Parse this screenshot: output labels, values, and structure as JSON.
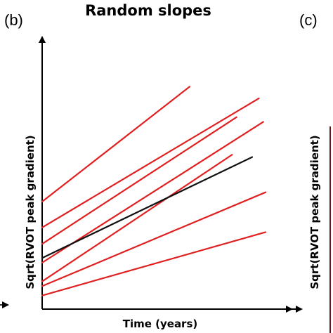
{
  "panels": {
    "left_label": "(b)",
    "right_label": "(c)",
    "right_ylabel": "Sqrt(RVOT peak gradient)"
  },
  "chart_data": {
    "type": "line",
    "title": "Random slopes",
    "xlabel": "Time (years)",
    "ylabel": "Sqrt(RVOT peak gradient)",
    "xlim": [
      0,
      1
    ],
    "ylim": [
      0,
      1
    ],
    "ticks": "none",
    "grid": false,
    "legend": "none",
    "colors": {
      "individual": "#e02020",
      "mean": "#111111",
      "axis": "#000000"
    },
    "series": [
      {
        "role": "individual",
        "x": [
          0,
          0.66
        ],
        "y": [
          0.44,
          0.93
        ]
      },
      {
        "role": "individual",
        "x": [
          0,
          0.99
        ],
        "y": [
          0.18,
          0.78
        ]
      },
      {
        "role": "individual",
        "x": [
          0,
          0.97
        ],
        "y": [
          0.33,
          0.88
        ]
      },
      {
        "role": "individual",
        "x": [
          0,
          0.87
        ],
        "y": [
          0.26,
          0.8
        ]
      },
      {
        "role": "individual",
        "x": [
          0,
          0.85
        ],
        "y": [
          0.1,
          0.64
        ]
      },
      {
        "role": "individual",
        "x": [
          0,
          1.0
        ],
        "y": [
          0.08,
          0.48
        ]
      },
      {
        "role": "individual",
        "x": [
          0,
          1.0
        ],
        "y": [
          0.04,
          0.31
        ]
      },
      {
        "role": "mean",
        "x": [
          0,
          0.94
        ],
        "y": [
          0.2,
          0.63
        ]
      }
    ]
  }
}
